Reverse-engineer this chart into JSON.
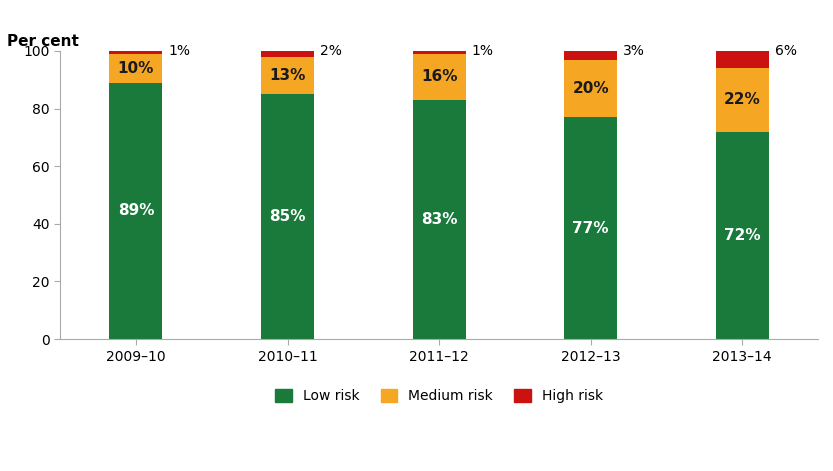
{
  "categories": [
    "2009–10",
    "2010–11",
    "2011–12",
    "2012–13",
    "2013–14"
  ],
  "low_risk": [
    89,
    85,
    83,
    77,
    72
  ],
  "medium_risk": [
    10,
    13,
    16,
    20,
    22
  ],
  "high_risk": [
    1,
    2,
    1,
    3,
    6
  ],
  "low_risk_color": "#1A7A3C",
  "medium_risk_color": "#F5A623",
  "high_risk_color": "#CC1111",
  "low_risk_label": "Low risk",
  "medium_risk_label": "Medium risk",
  "high_risk_label": "High risk",
  "ylabel": "Per cent",
  "ylim": [
    0,
    100
  ],
  "yticks": [
    0,
    20,
    40,
    60,
    80,
    100
  ],
  "bar_width": 0.35,
  "background_color": "#ffffff",
  "low_label_fontsize": 11,
  "med_label_fontsize": 11,
  "high_label_fontsize": 10,
  "tick_fontsize": 10,
  "legend_fontsize": 10,
  "ylabel_fontsize": 11
}
